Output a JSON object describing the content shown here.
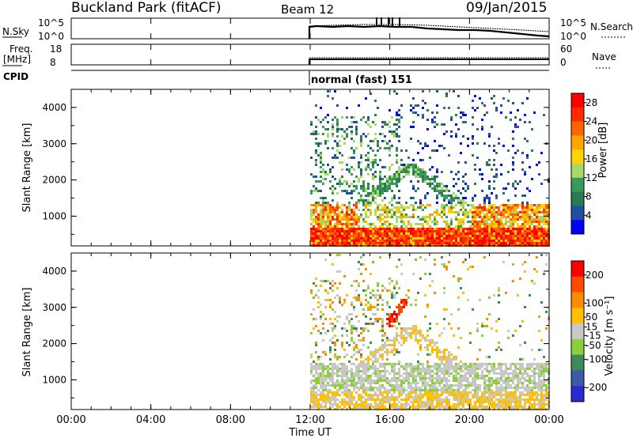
{
  "header": {
    "station": "Buckland Park (fitACF)",
    "beam": "Beam 12",
    "date": "09/Jan/2015"
  },
  "noise_panel": {
    "left_label": "N.Sky",
    "left_ticks": [
      "10^5",
      "10^0"
    ],
    "right_label": "N.Search",
    "right_ticks": [
      "10^5",
      "10^0"
    ]
  },
  "freq_panel": {
    "left_label_1": "Freq.",
    "left_label_2": "[MHz]",
    "left_ticks": [
      "18",
      "8"
    ],
    "right_label": "Nave",
    "right_ticks": [
      "60",
      "0"
    ]
  },
  "cpid": {
    "label": "CPID",
    "mode": "normal (fast) 151"
  },
  "colors": {
    "power_scale": [
      "#0000ff",
      "#1f4fa0",
      "#2b7a55",
      "#3a9a5a",
      "#a6d96a",
      "#ffd400",
      "#ffa500",
      "#ff6600",
      "#ff2a00",
      "#ff0000"
    ],
    "velocity_scale": [
      "#2a2ad0",
      "#3a5aa8",
      "#3c8a5a",
      "#8ccf3c",
      "#c8c8c8",
      "#ffc000",
      "#ff8c00",
      "#ff4a00",
      "#ff0000"
    ]
  },
  "chart_data": [
    {
      "type": "heatmap",
      "title": "",
      "ylabel": "Slant Range [km]",
      "xlabel": "Time UT",
      "x_ticks": [
        "00:00",
        "04:00",
        "08:00",
        "12:00",
        "16:00",
        "20:00",
        "00:00"
      ],
      "y_ticks": [
        "1000",
        "2000",
        "3000",
        "4000"
      ],
      "xlim": [
        0,
        24
      ],
      "ylim": [
        180,
        4500
      ],
      "colorbar": {
        "label": "Power [dB]",
        "ticks": [
          "28",
          "24",
          "20",
          "16",
          "12",
          "8",
          "4"
        ],
        "range": [
          0,
          30
        ]
      }
    },
    {
      "type": "heatmap",
      "title": "",
      "ylabel": "Slant Range [km]",
      "xlabel": "Time UT",
      "x_ticks": [
        "00:00",
        "04:00",
        "08:00",
        "12:00",
        "16:00",
        "20:00",
        "00:00"
      ],
      "y_ticks": [
        "1000",
        "2000",
        "3000",
        "4000"
      ],
      "xlim": [
        0,
        24
      ],
      "ylim": [
        180,
        4500
      ],
      "colorbar": {
        "label": "Velocity [m s⁻¹]",
        "ticks": [
          "200",
          "100",
          "50",
          "15",
          "-15",
          "-50",
          "-100",
          "-200"
        ],
        "range": [
          -250,
          250
        ]
      }
    }
  ],
  "axis": {
    "time_label": "Time UT"
  }
}
